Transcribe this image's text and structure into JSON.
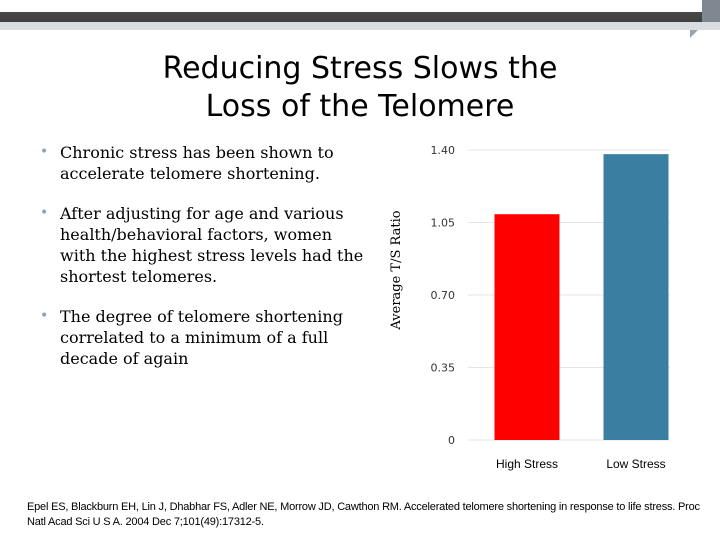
{
  "slide": {
    "title_line1": "Reducing Stress Slows the",
    "title_line2": "Loss of the Telomere",
    "bullets": [
      "Chronic stress has been shown to accelerate telomere shortening.",
      "After adjusting for age and various health/behavioral factors, women with the highest stress levels had the shortest telomeres.",
      "The degree of telomere shortening correlated to a minimum of a full decade of again"
    ],
    "citation": "Epel ES, Blackburn EH, Lin J, Dhabhar FS, Adler NE, Morrow JD, Cawthon RM. Accelerated telomere shortening in response to life stress. Proc Natl Acad Sci U S A. 2004 Dec 7;101(49):17312-5."
  },
  "chart_data": {
    "type": "bar",
    "categories": [
      "High Stress",
      "Low Stress"
    ],
    "values": [
      1.09,
      1.38
    ],
    "colors": [
      "#ff0000",
      "#3a7fa1"
    ],
    "ylabel": "Average T/S Ratio",
    "ylim": [
      0,
      1.4
    ],
    "yticks": [
      "0",
      "0.35",
      "0.70",
      "1.05",
      "1.40"
    ],
    "ytick_values": [
      0,
      0.35,
      0.7,
      1.05,
      1.4
    ]
  }
}
